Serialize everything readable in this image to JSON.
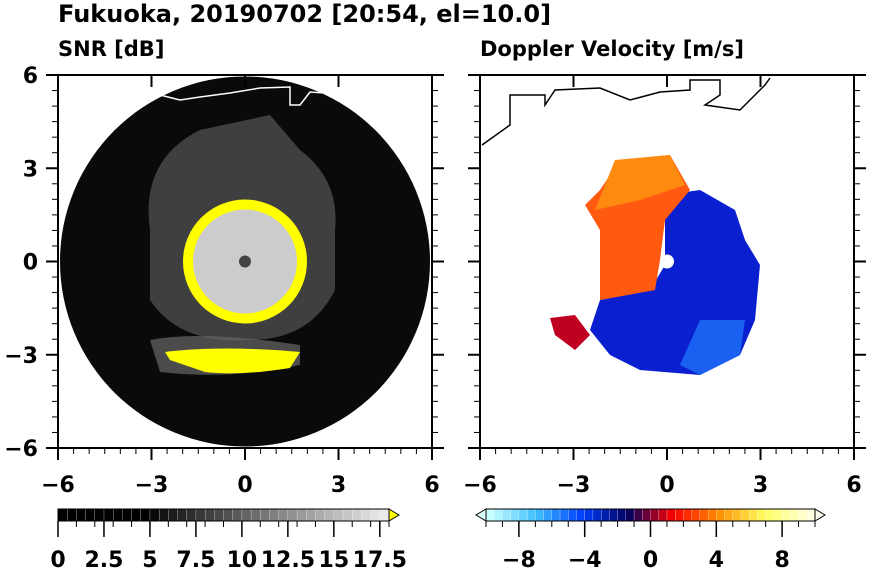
{
  "title": "Fukuoka, 20190702 [20:54, el=10.0]",
  "chart_data": [
    {
      "type": "heatmap",
      "title": "SNR [dB]",
      "xlim": [
        -6,
        6
      ],
      "ylim": [
        -6,
        6
      ],
      "xticks": [
        "−6",
        "−3",
        "0",
        "3",
        "6"
      ],
      "yticks": [
        "6",
        "3",
        "0",
        "−3",
        "−6"
      ],
      "colorbar": {
        "min": 0,
        "max": 18,
        "step": 0.5,
        "labels": [
          "0",
          "2.5",
          "5",
          "7.5",
          "10",
          "12.5",
          "15",
          "17.5"
        ],
        "over_color": "#ffff00",
        "colors": [
          "#000000",
          "#ffffff"
        ]
      }
    },
    {
      "type": "heatmap",
      "title": "Doppler Velocity [m/s]",
      "xlim": [
        -6,
        6
      ],
      "ylim": [
        -6,
        6
      ],
      "xticks": [
        "−6",
        "−3",
        "0",
        "3",
        "6"
      ],
      "yticks": [],
      "colorbar": {
        "min": -10,
        "max": 10,
        "step": 0.5,
        "labels": [
          "−8",
          "−4",
          "0",
          "4",
          "8"
        ],
        "colors": [
          "#c8ffff",
          "#40c0ff",
          "#0040ff",
          "#000060",
          "#ff0000",
          "#ff9000",
          "#ffff60",
          "#ffffe0"
        ]
      }
    }
  ]
}
